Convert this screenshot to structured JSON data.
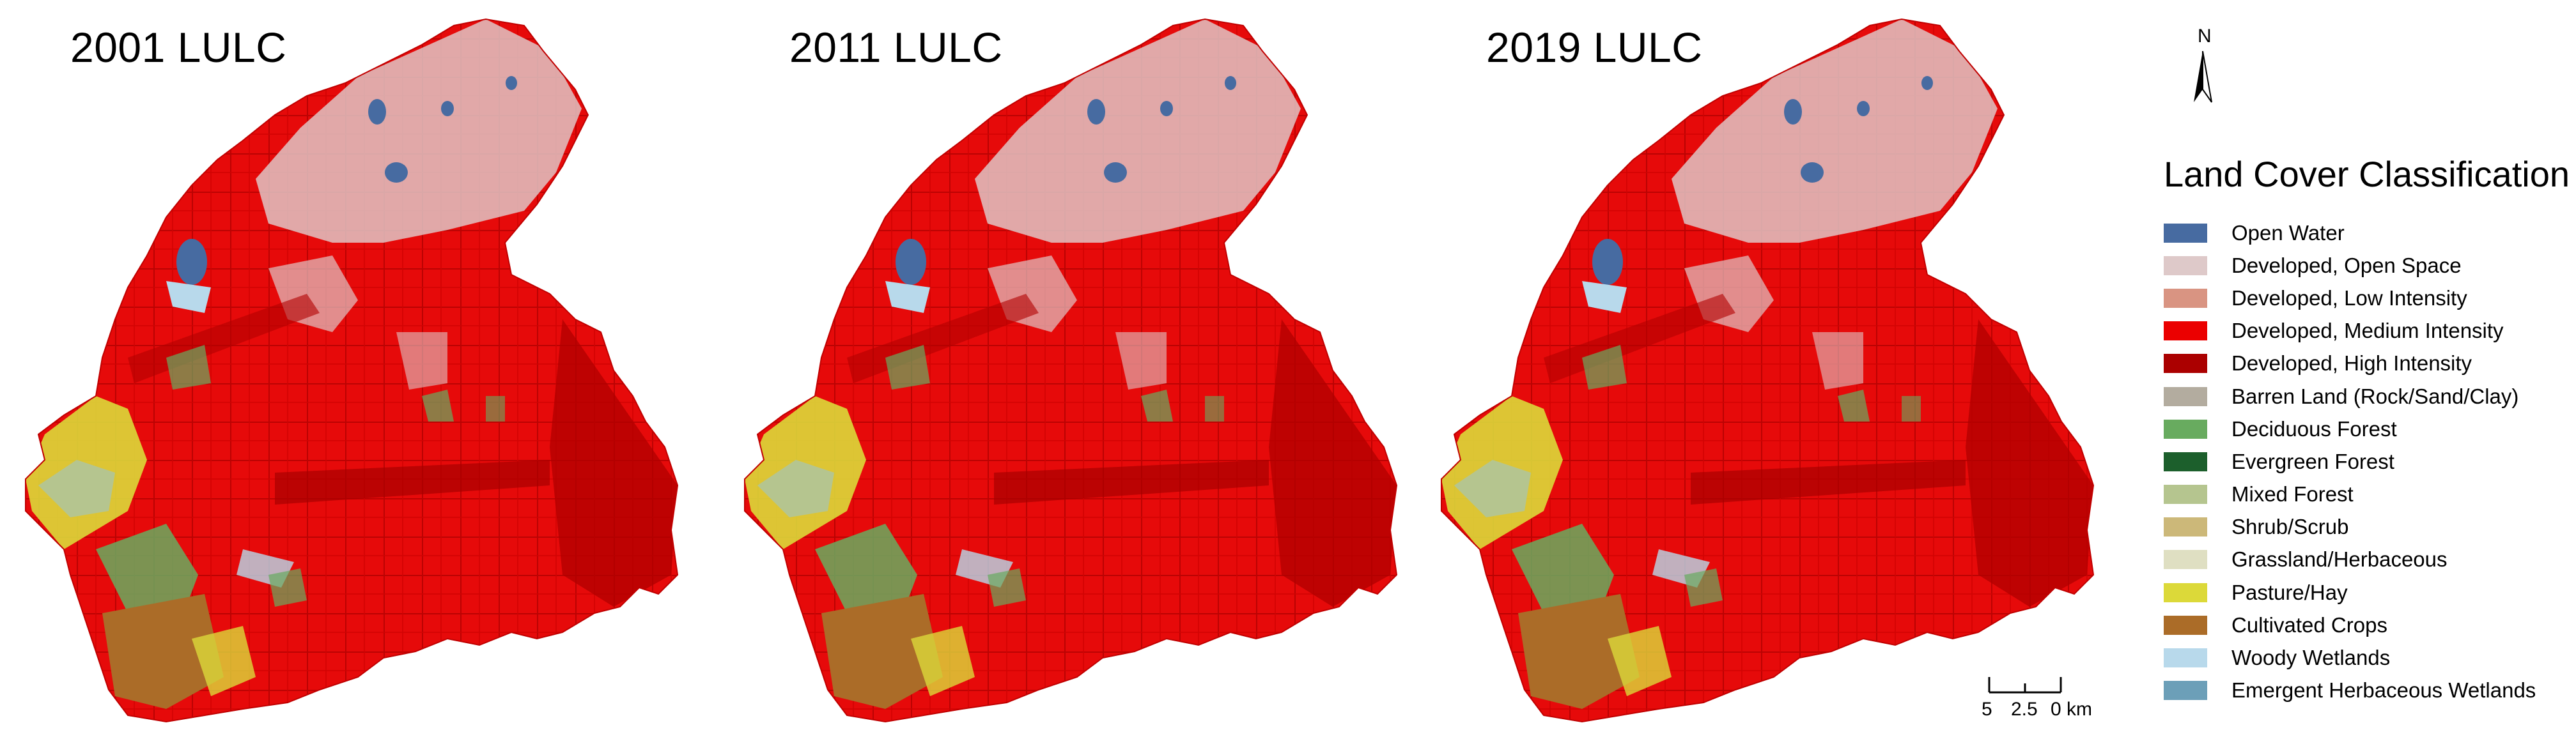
{
  "panels": [
    {
      "title": "2001 LULC"
    },
    {
      "title": "2011 LULC"
    },
    {
      "title": "2019 LULC"
    }
  ],
  "north_arrow": {
    "letter": "N"
  },
  "legend": {
    "title": "Land Cover Classification",
    "items": [
      {
        "label": "Open Water",
        "color": "#476ba1"
      },
      {
        "label": "Developed, Open Space",
        "color": "#dec9c9"
      },
      {
        "label": "Developed, Low Intensity",
        "color": "#d99482"
      },
      {
        "label": "Developed, Medium Intensity",
        "color": "#eb0000"
      },
      {
        "label": "Developed, High Intensity",
        "color": "#ab0000"
      },
      {
        "label": "Barren Land (Rock/Sand/Clay)",
        "color": "#b3ac9f"
      },
      {
        "label": "Deciduous Forest",
        "color": "#68ab5f"
      },
      {
        "label": "Evergreen Forest",
        "color": "#1c5f2c"
      },
      {
        "label": "Mixed Forest",
        "color": "#b5c58f"
      },
      {
        "label": "Shrub/Scrub",
        "color": "#ccb879"
      },
      {
        "label": "Grassland/Herbaceous",
        "color": "#dfdfc2"
      },
      {
        "label": "Pasture/Hay",
        "color": "#dcd939"
      },
      {
        "label": "Cultivated Crops",
        "color": "#ab6c28"
      },
      {
        "label": "Woody Wetlands",
        "color": "#b8d9eb"
      },
      {
        "label": "Emergent Herbaceous Wetlands",
        "color": "#6c9fb8"
      }
    ]
  },
  "scale_bar": {
    "labels": [
      "5",
      "2.5",
      "0 km"
    ]
  }
}
